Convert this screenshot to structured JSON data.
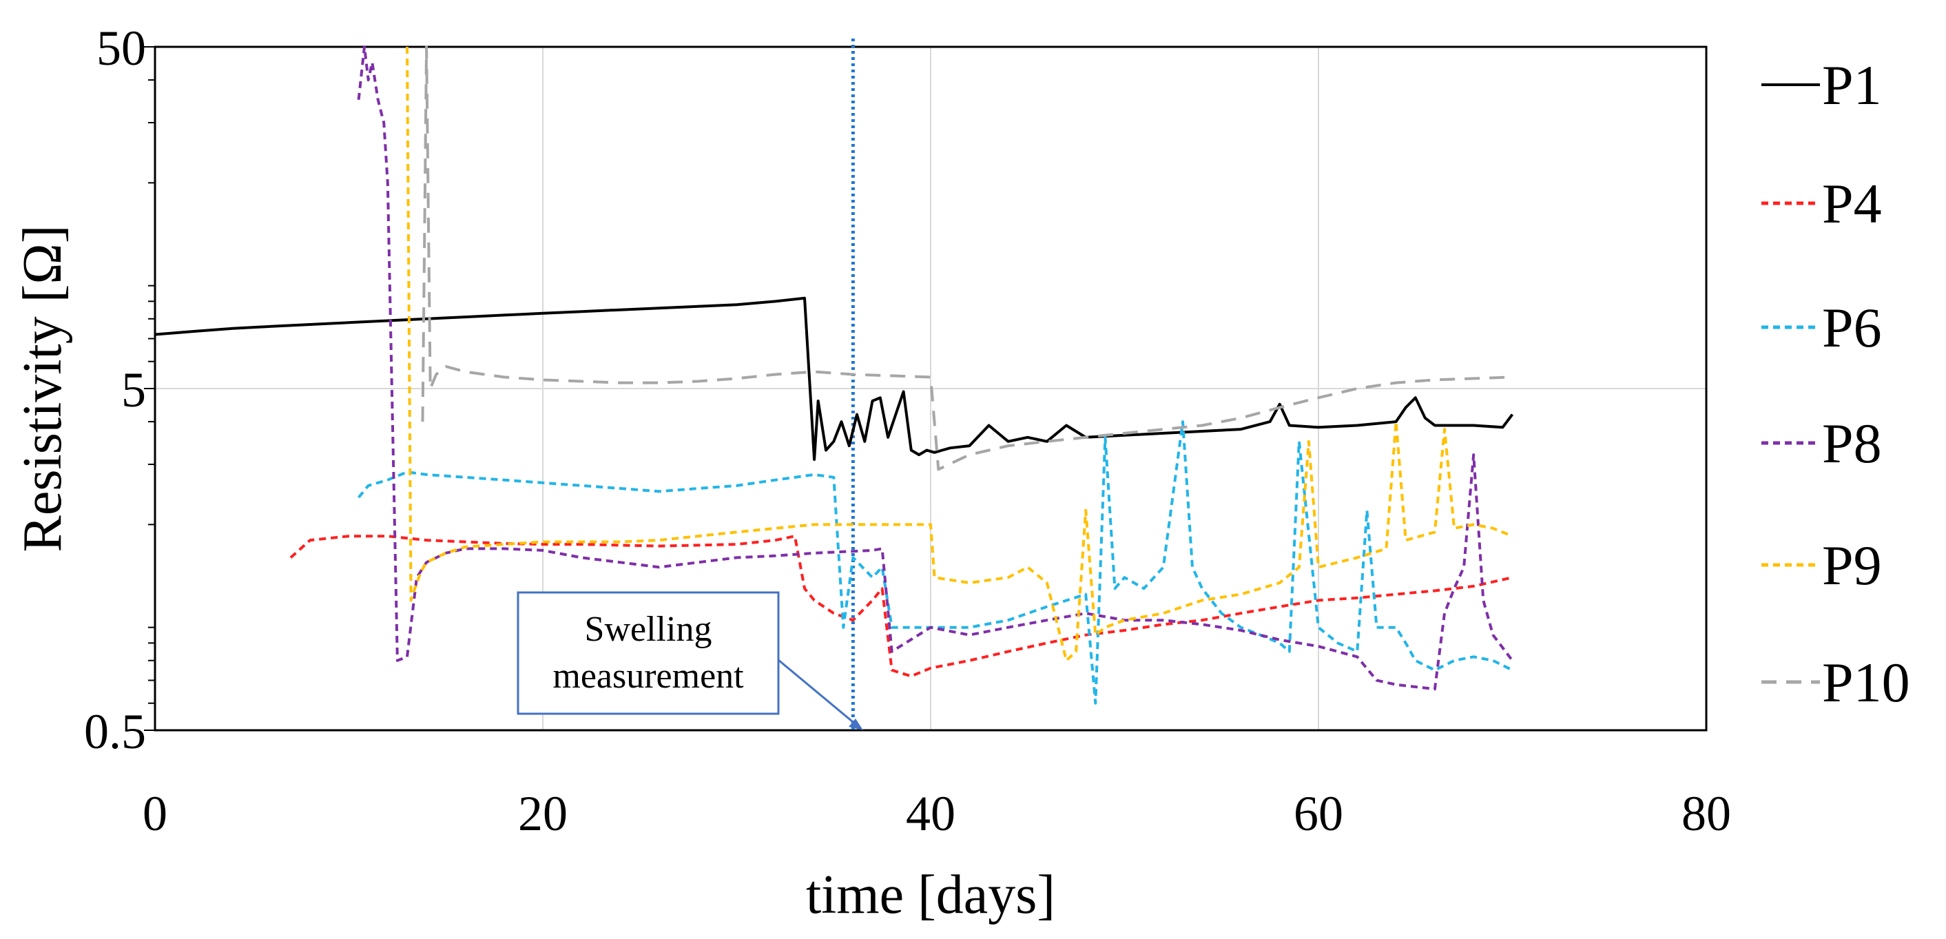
{
  "chart_data": {
    "type": "line",
    "title": "",
    "xlabel": "time [days]",
    "ylabel": "Resistivity [Ω]",
    "xlim": [
      0,
      80
    ],
    "ylim": [
      0.5,
      50
    ],
    "yscale": "log",
    "x_ticks": [
      0,
      20,
      40,
      60,
      80
    ],
    "x_tick_labels": [
      "0",
      "20",
      "40",
      "60",
      "80"
    ],
    "y_ticks": [
      0.5,
      5,
      50
    ],
    "y_tick_labels": [
      "0.5",
      "5",
      "50"
    ],
    "legend_position": "right",
    "vertical_marker": {
      "x": 36,
      "label": "Swelling measurement",
      "color": "#1f77d0"
    },
    "annotation": {
      "line1": "Swelling",
      "line2": "measurement",
      "points_to_x": 36
    },
    "series": [
      {
        "name": "P1",
        "color": "#000000",
        "dash": "solid",
        "x": [
          0,
          2,
          4,
          6,
          8,
          10,
          12,
          14,
          16,
          18,
          20,
          22,
          24,
          26,
          28,
          30,
          32,
          33.5,
          34,
          34.2,
          34.6,
          35,
          35.4,
          35.8,
          36.2,
          36.6,
          37,
          37.4,
          37.8,
          38.2,
          38.6,
          39,
          39.4,
          39.8,
          40.2,
          40.6,
          41,
          42,
          43,
          44,
          45,
          46,
          47,
          48,
          50,
          52,
          54,
          56,
          57.5,
          58,
          58.5,
          60,
          62,
          64,
          64.5,
          65,
          65.5,
          66,
          68,
          69.5,
          70
        ],
        "y": [
          7.2,
          7.35,
          7.5,
          7.6,
          7.7,
          7.8,
          7.9,
          8.0,
          8.1,
          8.2,
          8.3,
          8.4,
          8.5,
          8.6,
          8.7,
          8.8,
          9.0,
          9.2,
          3.1,
          4.6,
          3.3,
          3.5,
          4.0,
          3.4,
          4.2,
          3.5,
          4.6,
          4.7,
          3.6,
          4.2,
          4.9,
          3.3,
          3.2,
          3.3,
          3.25,
          3.3,
          3.35,
          3.4,
          3.9,
          3.5,
          3.6,
          3.5,
          3.9,
          3.6,
          3.65,
          3.7,
          3.75,
          3.8,
          4.0,
          4.5,
          3.9,
          3.85,
          3.9,
          4.0,
          4.4,
          4.7,
          4.1,
          3.9,
          3.9,
          3.85,
          4.2
        ]
      },
      {
        "name": "P4",
        "color": "#ff2020",
        "dash": "10 7",
        "x": [
          7,
          8,
          10,
          12,
          14,
          16,
          18,
          20,
          22,
          24,
          26,
          28,
          30,
          32,
          33,
          33.5,
          34,
          35,
          36,
          37,
          37.5,
          38,
          39,
          40,
          42,
          44,
          46,
          48,
          50,
          52,
          54,
          56,
          58,
          60,
          62,
          64,
          66,
          68,
          70
        ],
        "y": [
          1.6,
          1.8,
          1.85,
          1.85,
          1.8,
          1.78,
          1.76,
          1.75,
          1.75,
          1.74,
          1.73,
          1.74,
          1.75,
          1.8,
          1.85,
          1.3,
          1.2,
          1.1,
          1.05,
          1.2,
          1.3,
          0.75,
          0.72,
          0.76,
          0.8,
          0.85,
          0.9,
          0.95,
          0.98,
          1.02,
          1.05,
          1.1,
          1.15,
          1.2,
          1.22,
          1.25,
          1.28,
          1.32,
          1.4
        ]
      },
      {
        "name": "P6",
        "color": "#22b5e8",
        "dash": "10 7",
        "x": [
          10.5,
          11,
          12,
          13,
          14,
          16,
          18,
          20,
          22,
          24,
          26,
          28,
          30,
          32,
          34,
          35,
          35.5,
          36,
          37,
          37.5,
          38,
          40,
          42,
          44,
          46,
          48,
          48.5,
          49,
          49.5,
          50,
          51,
          52,
          53,
          53.5,
          54,
          55,
          56,
          57,
          58,
          58.5,
          59,
          60,
          61,
          62,
          62.5,
          63,
          64,
          64.5,
          65,
          66,
          67,
          68,
          69,
          70
        ],
        "y": [
          2.4,
          2.6,
          2.7,
          2.85,
          2.8,
          2.75,
          2.7,
          2.65,
          2.6,
          2.55,
          2.5,
          2.55,
          2.6,
          2.7,
          2.8,
          2.75,
          1.0,
          1.6,
          1.4,
          1.5,
          1.0,
          1.0,
          1.0,
          1.05,
          1.15,
          1.25,
          0.6,
          3.6,
          1.3,
          1.4,
          1.3,
          1.5,
          4.0,
          1.5,
          1.3,
          1.1,
          1.0,
          0.95,
          0.9,
          0.85,
          3.5,
          1.0,
          0.9,
          0.85,
          2.2,
          1.0,
          1.0,
          0.9,
          0.8,
          0.75,
          0.8,
          0.82,
          0.8,
          0.75
        ]
      },
      {
        "name": "P8",
        "color": "#7e2fa8",
        "dash": "10 7",
        "x": [
          10.5,
          10.8,
          11,
          11.2,
          11.5,
          11.8,
          12,
          12.5,
          13,
          13.5,
          14,
          15,
          16,
          18,
          20,
          22,
          24,
          26,
          28,
          30,
          32,
          34,
          35,
          36,
          37,
          37.5,
          38,
          40,
          42,
          44,
          46,
          48,
          50,
          52,
          54,
          56,
          58,
          60,
          62,
          63,
          64,
          65,
          66,
          66.5,
          67,
          67.5,
          68,
          68.5,
          69,
          70
        ],
        "y": [
          35,
          50,
          40,
          45,
          35,
          30,
          20,
          0.8,
          0.82,
          1.4,
          1.55,
          1.65,
          1.7,
          1.7,
          1.68,
          1.6,
          1.55,
          1.5,
          1.55,
          1.6,
          1.62,
          1.65,
          1.66,
          1.67,
          1.68,
          1.7,
          0.85,
          1.0,
          0.95,
          1.0,
          1.05,
          1.1,
          1.05,
          1.05,
          1.02,
          0.98,
          0.92,
          0.88,
          0.82,
          0.7,
          0.68,
          0.67,
          0.66,
          1.1,
          1.3,
          1.5,
          3.2,
          1.2,
          0.95,
          0.8
        ]
      },
      {
        "name": "P9",
        "color": "#ffc000",
        "dash": "10 7",
        "x": [
          13,
          13.1,
          13.2,
          13.4,
          13.7,
          14,
          15,
          16,
          18,
          20,
          22,
          24,
          26,
          28,
          30,
          32,
          34,
          36,
          38,
          40,
          40.2,
          42,
          44,
          45,
          46,
          47,
          47.5,
          48,
          48.5,
          49,
          50,
          52,
          54,
          56,
          58,
          59,
          59.5,
          60,
          62,
          63.5,
          64,
          64.5,
          66,
          66.5,
          67,
          68,
          69,
          70
        ],
        "y": [
          50,
          8,
          1.2,
          1.3,
          1.45,
          1.55,
          1.65,
          1.72,
          1.75,
          1.78,
          1.78,
          1.78,
          1.8,
          1.85,
          1.9,
          1.95,
          2.0,
          2.0,
          2.0,
          2.0,
          1.4,
          1.35,
          1.4,
          1.5,
          1.35,
          0.8,
          0.85,
          2.2,
          0.95,
          1.0,
          1.05,
          1.1,
          1.2,
          1.25,
          1.35,
          1.5,
          3.5,
          1.5,
          1.6,
          1.7,
          4.0,
          1.8,
          1.9,
          3.8,
          1.95,
          2.0,
          1.95,
          1.85
        ]
      },
      {
        "name": "P10",
        "color": "#a6a6a6",
        "dash": "22 14",
        "x": [
          13.8,
          14,
          14.2,
          14.5,
          15,
          16,
          18,
          20,
          22,
          24,
          26,
          28,
          30,
          32,
          34,
          36,
          38,
          40,
          40.4,
          42,
          44,
          46,
          48,
          50,
          52,
          54,
          56,
          58,
          60,
          62,
          64,
          66,
          68,
          70
        ],
        "y": [
          4.0,
          50,
          5.0,
          5.5,
          5.8,
          5.6,
          5.4,
          5.3,
          5.25,
          5.2,
          5.2,
          5.25,
          5.35,
          5.5,
          5.6,
          5.5,
          5.45,
          5.4,
          2.9,
          3.2,
          3.4,
          3.5,
          3.6,
          3.7,
          3.8,
          3.9,
          4.1,
          4.4,
          4.7,
          5.0,
          5.2,
          5.3,
          5.35,
          5.4
        ]
      }
    ]
  }
}
